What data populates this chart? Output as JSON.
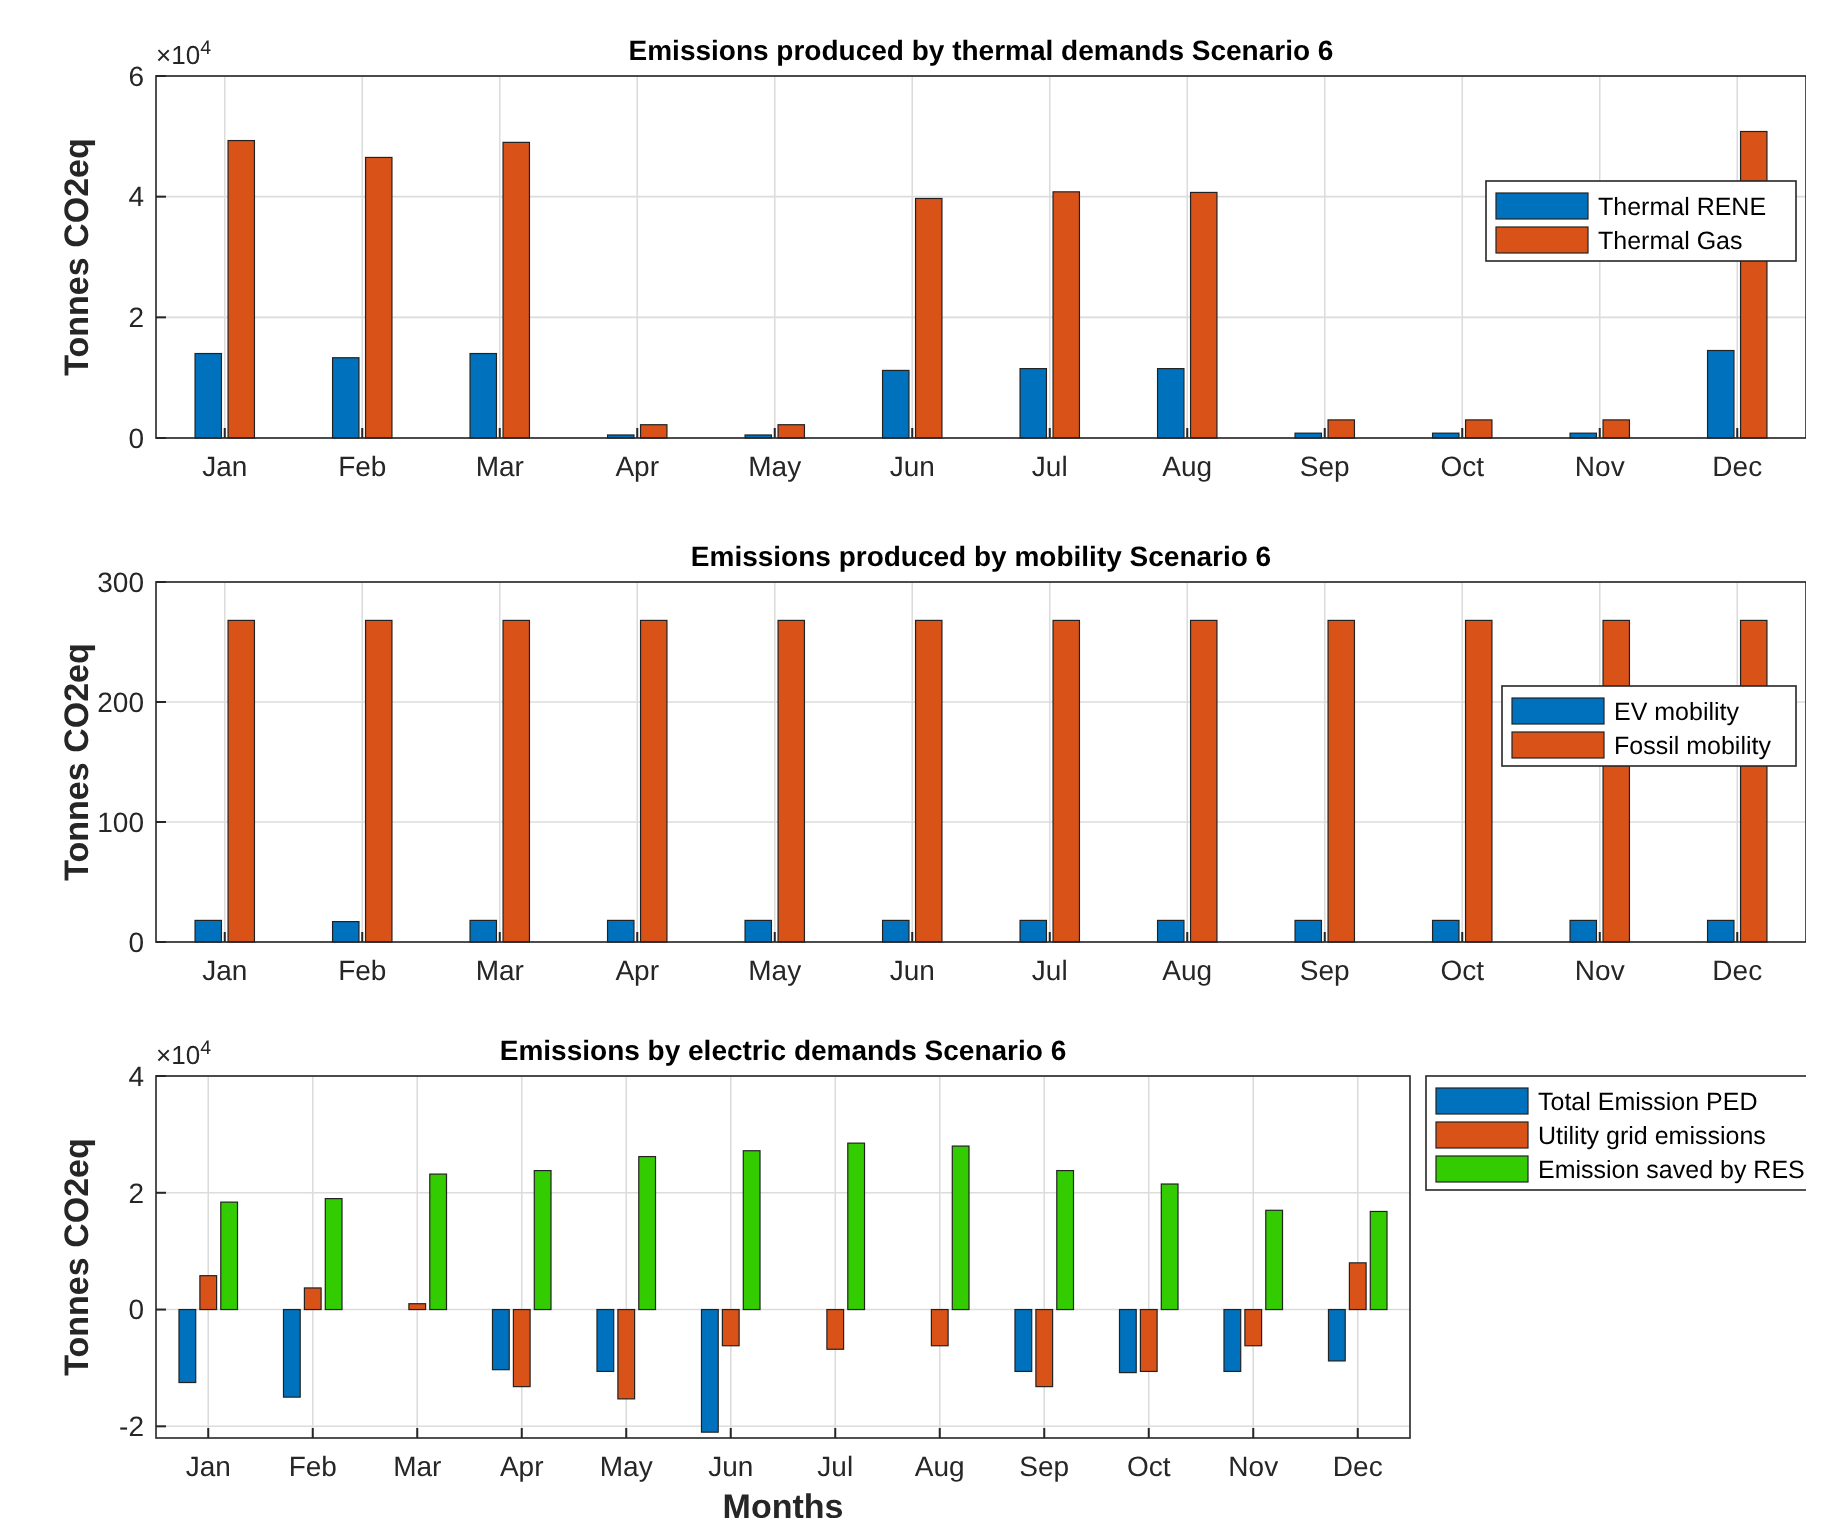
{
  "chart_data": [
    {
      "type": "bar",
      "title": "Emissions produced by thermal demands Scenario 6",
      "ylabel": "Tonnes CO2eq",
      "categories": [
        "Jan",
        "Feb",
        "Mar",
        "Apr",
        "May",
        "Jun",
        "Jul",
        "Aug",
        "Sep",
        "Oct",
        "Nov",
        "Dec"
      ],
      "series": [
        {
          "name": "Thermal RENE",
          "color": "#0072bd",
          "values": [
            1.4,
            1.33,
            1.4,
            0.05,
            0.05,
            1.12,
            1.15,
            1.15,
            0.08,
            0.08,
            0.08,
            1.45
          ]
        },
        {
          "name": "Thermal Gas",
          "color": "#d95319",
          "values": [
            4.93,
            4.65,
            4.9,
            0.22,
            0.22,
            3.97,
            4.08,
            4.07,
            0.3,
            0.3,
            0.3,
            5.08
          ]
        }
      ],
      "ylim": [
        0,
        6
      ],
      "yticks": [
        0,
        2,
        4,
        6
      ],
      "annotations": [
        "×10$^{4}$"
      ],
      "grid": true,
      "legend": "right"
    },
    {
      "type": "bar",
      "title": "Emissions produced by mobility Scenario 6",
      "ylabel": "Tonnes CO2eq",
      "categories": [
        "Jan",
        "Feb",
        "Mar",
        "Apr",
        "May",
        "Jun",
        "Jul",
        "Aug",
        "Sep",
        "Oct",
        "Nov",
        "Dec"
      ],
      "series": [
        {
          "name": "EV mobility",
          "color": "#0072bd",
          "values": [
            18,
            17,
            18,
            18,
            18,
            18,
            18,
            18,
            18,
            18,
            18,
            18
          ]
        },
        {
          "name": "Fossil mobility",
          "color": "#d95319",
          "values": [
            268,
            268,
            268,
            268,
            268,
            268,
            268,
            268,
            268,
            268,
            268,
            268
          ]
        }
      ],
      "ylim": [
        0,
        300
      ],
      "yticks": [
        0,
        100,
        200,
        300
      ],
      "grid": true,
      "legend": "right"
    },
    {
      "type": "bar",
      "title": "Emissions by electric demands Scenario 6",
      "xlabel": "Months",
      "ylabel": "Tonnes CO2eq",
      "categories": [
        "Jan",
        "Feb",
        "Mar",
        "Apr",
        "May",
        "Jun",
        "Jul",
        "Aug",
        "Sep",
        "Oct",
        "Nov",
        "Dec"
      ],
      "series": [
        {
          "name": "Total Emission PED",
          "color": "#0072bd",
          "values": [
            -1.25,
            -1.5,
            null,
            -1.03,
            -1.06,
            -2.1,
            null,
            null,
            -1.06,
            -1.08,
            -1.06,
            -0.88
          ]
        },
        {
          "name": "Utility grid emissions",
          "color": "#d95319",
          "values": [
            0.58,
            0.37,
            0.1,
            -1.32,
            -1.53,
            -0.62,
            -0.68,
            -0.62,
            -1.32,
            -1.06,
            -0.62,
            0.8
          ]
        },
        {
          "name": "Emission saved by RES",
          "color": "#33cc00",
          "values": [
            1.84,
            1.9,
            2.32,
            2.38,
            2.62,
            2.72,
            2.85,
            2.8,
            2.38,
            2.15,
            1.7,
            1.68
          ]
        }
      ],
      "ylim": [
        -2.2,
        4
      ],
      "yticks": [
        -2,
        0,
        2,
        4
      ],
      "annotations": [
        "×10$^{4}$"
      ],
      "grid": true,
      "legend": "top right outside"
    }
  ]
}
